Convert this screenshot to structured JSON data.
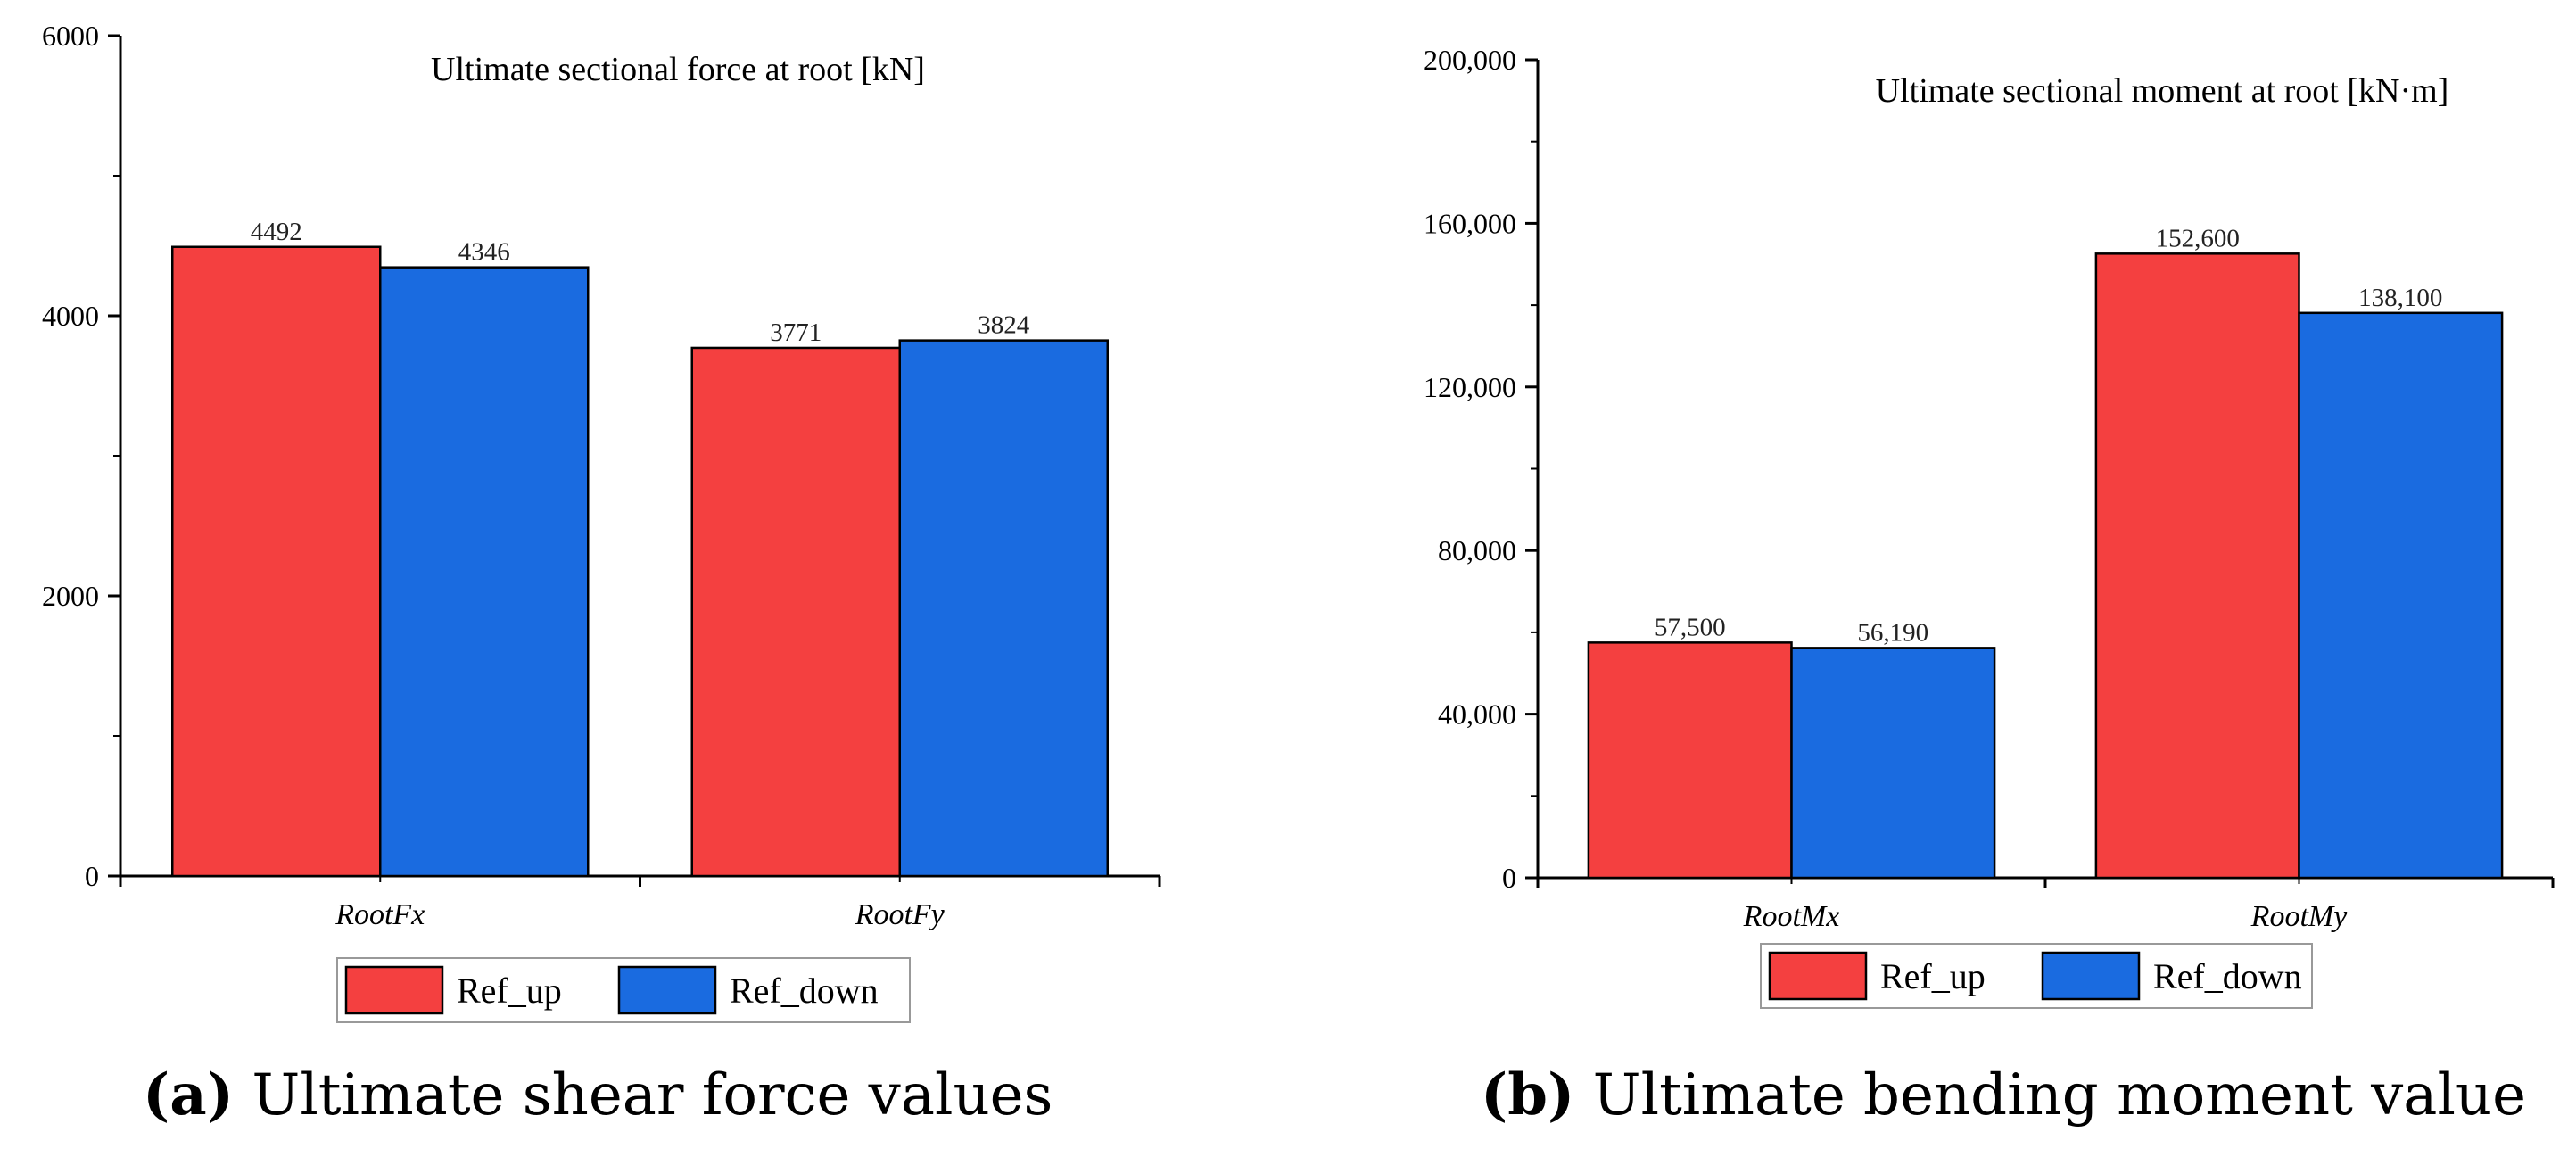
{
  "colors": {
    "ref_up": "#f44040",
    "ref_down": "#1a6be0",
    "axis": "#000000"
  },
  "captions": [
    {
      "label": "(a)",
      "text": "Ultimate shear force values"
    },
    {
      "label": "(b)",
      "text": "Ultimate bending moment value"
    }
  ],
  "chart_data": [
    {
      "type": "bar",
      "title": "Ultimate sectional force at root [kN]",
      "xlabel": "",
      "ylabel": "",
      "categories": [
        "RootFx",
        "RootFy"
      ],
      "series": [
        {
          "name": "Ref_up",
          "values": [
            4492,
            3771
          ],
          "labels": [
            "4492",
            "3771"
          ]
        },
        {
          "name": "Ref_down",
          "values": [
            4346,
            3824
          ],
          "labels": [
            "4346",
            "3824"
          ]
        }
      ],
      "ylim": [
        0,
        6000
      ],
      "yticks": [
        0,
        2000,
        4000,
        6000
      ],
      "ytick_labels": [
        "0",
        "2000",
        "4000",
        "6000"
      ],
      "grid": false,
      "legend": "bottom"
    },
    {
      "type": "bar",
      "title": "Ultimate sectional moment at root [kN·m]",
      "xlabel": "",
      "ylabel": "",
      "categories": [
        "RootMx",
        "RootMy"
      ],
      "series": [
        {
          "name": "Ref_up",
          "values": [
            57500,
            152600
          ],
          "labels": [
            "57,500",
            "152,600"
          ]
        },
        {
          "name": "Ref_down",
          "values": [
            56190,
            138100
          ],
          "labels": [
            "56,190",
            "138,100"
          ]
        }
      ],
      "ylim": [
        0,
        200000
      ],
      "yticks": [
        0,
        40000,
        80000,
        120000,
        160000,
        200000
      ],
      "ytick_labels": [
        "0",
        "40,000",
        "80,000",
        "120,000",
        "160,000",
        "200,000"
      ],
      "grid": false,
      "legend": "bottom"
    }
  ]
}
